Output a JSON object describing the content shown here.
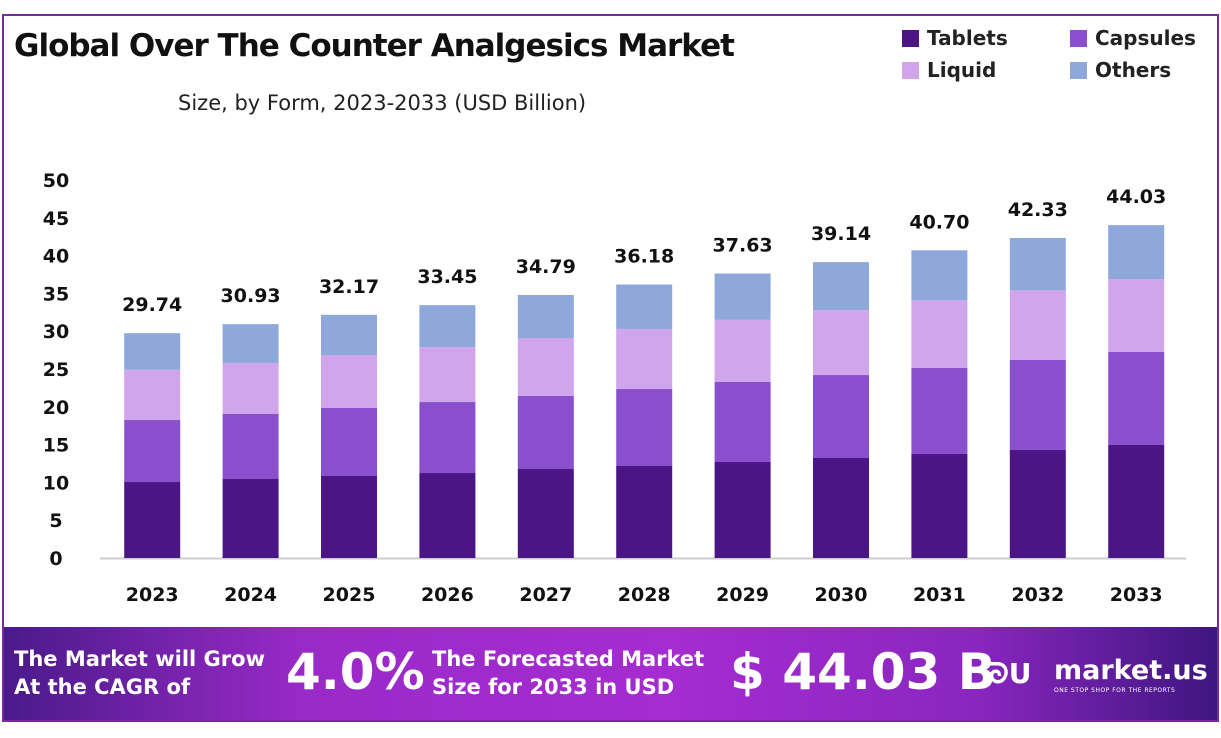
{
  "chart_data": {
    "type": "bar",
    "stacked": true,
    "title": "Global Over The Counter Analgesics Market",
    "subtitle": "Size, by Form, 2023-2033 (USD Billion)",
    "xlabel": "",
    "ylabel": "",
    "ylim": [
      0,
      50
    ],
    "yticks": [
      "0",
      "5",
      "10",
      "15",
      "20",
      "25",
      "30",
      "35",
      "40",
      "45",
      "50"
    ],
    "categories": [
      "2023",
      "2024",
      "2025",
      "2026",
      "2027",
      "2028",
      "2029",
      "2030",
      "2031",
      "2032",
      "2033"
    ],
    "series": [
      {
        "name": "Tablets",
        "color": "#4b1585",
        "values": [
          10.05,
          10.45,
          10.85,
          11.24,
          11.77,
          12.17,
          12.7,
          13.23,
          13.76,
          14.29,
          14.95
        ]
      },
      {
        "name": "Capsules",
        "color": "#8a4fcc",
        "values": [
          8.2,
          8.6,
          8.99,
          9.39,
          9.66,
          10.18,
          10.58,
          10.97,
          11.37,
          11.9,
          12.3
        ]
      },
      {
        "name": "Liquid",
        "color": "#d1a5ec",
        "values": [
          6.65,
          6.75,
          7.01,
          7.27,
          7.67,
          7.95,
          8.22,
          8.6,
          8.97,
          9.21,
          9.65
        ]
      },
      {
        "name": "Others",
        "color": "#8ea8dc",
        "values": [
          4.84,
          5.13,
          5.32,
          5.55,
          5.69,
          5.88,
          6.13,
          6.34,
          6.6,
          6.93,
          7.13
        ]
      }
    ],
    "totals": [
      "29.74",
      "30.93",
      "32.17",
      "33.45",
      "34.79",
      "36.18",
      "37.63",
      "39.14",
      "40.70",
      "42.33",
      "44.03"
    ],
    "legend_position": "top-right",
    "grid": false
  },
  "footer": {
    "cagr_text_1": "The Market will Grow",
    "cagr_text_2": "At the CAGR of",
    "cagr_value": "4.0%",
    "forecast_text_1": "The Forecasted Market",
    "forecast_text_2": "Size for 2033 in USD",
    "forecast_value": "$ 44.03 B",
    "brand": "market.us",
    "brand_tagline": "ONE STOP SHOP FOR THE REPORTS"
  }
}
